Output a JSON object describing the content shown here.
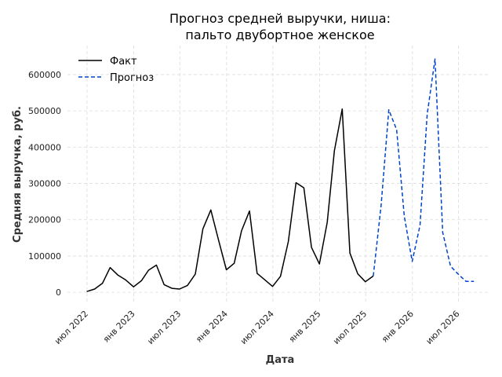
{
  "chart_data": {
    "type": "line",
    "title_line1": "Прогноз средней выручки, ниша:",
    "title_line2": "пальто двубортное женское",
    "xlabel": "Дата",
    "ylabel": "Средняя выручка, руб.",
    "ylim": [
      -30000,
      680000
    ],
    "xlim": [
      "2022-04-15",
      "2026-10-31"
    ],
    "grid": true,
    "legend_position": "top-left",
    "y_ticks": [
      0,
      100000,
      200000,
      300000,
      400000,
      500000,
      600000
    ],
    "y_tick_labels": [
      "0",
      "100000",
      "200000",
      "300000",
      "400000",
      "500000",
      "600000"
    ],
    "x_ticks": [
      "2022-07-01",
      "2023-01-01",
      "2023-07-01",
      "2024-01-01",
      "2024-07-01",
      "2025-01-01",
      "2025-07-01",
      "2026-01-01",
      "2026-07-01"
    ],
    "x_tick_labels": [
      "июл 2022",
      "янв 2023",
      "июл 2023",
      "янв 2024",
      "июл 2024",
      "янв 2025",
      "июл 2025",
      "янв 2026",
      "июл 2026"
    ],
    "series": [
      {
        "name": "Факт",
        "color": "#000000",
        "style": "solid",
        "x": [
          "2022-06-30",
          "2022-07-31",
          "2022-08-31",
          "2022-09-30",
          "2022-10-31",
          "2022-11-30",
          "2022-12-31",
          "2023-01-31",
          "2023-02-28",
          "2023-03-31",
          "2023-04-30",
          "2023-05-31",
          "2023-06-30",
          "2023-07-31",
          "2023-08-31",
          "2023-09-30",
          "2023-10-31",
          "2023-11-30",
          "2023-12-31",
          "2024-01-31",
          "2024-02-29",
          "2024-03-31",
          "2024-04-30",
          "2024-05-31",
          "2024-06-30",
          "2024-07-31",
          "2024-08-31",
          "2024-09-30",
          "2024-10-31",
          "2024-11-30",
          "2024-12-31",
          "2025-01-31",
          "2025-02-28",
          "2025-03-31",
          "2025-04-30",
          "2025-05-31",
          "2025-06-30",
          "2025-07-31"
        ],
        "values": [
          2000,
          9000,
          25000,
          68000,
          47000,
          34000,
          15000,
          32000,
          61000,
          75000,
          21000,
          11000,
          9000,
          19000,
          50000,
          175000,
          227000,
          145000,
          62000,
          80000,
          170000,
          224000,
          52000,
          34000,
          16000,
          44000,
          140000,
          302000,
          288000,
          124000,
          78000,
          193000,
          390000,
          505000,
          108000,
          51000,
          29000,
          45000
        ]
      },
      {
        "name": "Прогноз",
        "color": "#0044cc",
        "style": "dashed",
        "x": [
          "2025-07-31",
          "2025-08-31",
          "2025-09-30",
          "2025-10-31",
          "2025-11-30",
          "2025-12-31",
          "2026-01-31",
          "2026-02-28",
          "2026-03-31",
          "2026-04-30",
          "2026-05-31",
          "2026-06-30",
          "2026-07-31",
          "2026-08-31"
        ],
        "values": [
          45000,
          240000,
          503000,
          448000,
          210000,
          85000,
          185000,
          490000,
          643000,
          165000,
          72000,
          50000,
          30000,
          30000
        ]
      }
    ]
  }
}
